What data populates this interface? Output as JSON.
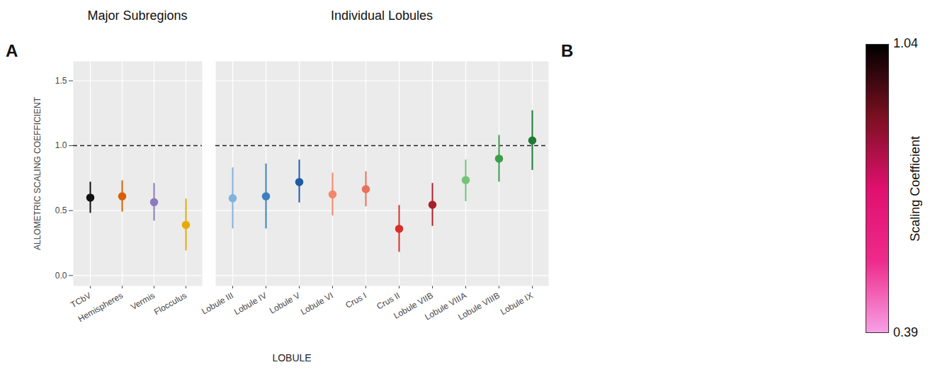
{
  "chart_data": [
    {
      "type": "scatter",
      "panel": "A",
      "y_label": "ALLOMETRIC SCALING COEFFICIENT",
      "x_label": "LOBULE",
      "ylim": [
        -0.08,
        1.65
      ],
      "yticks": [
        {
          "value": 0,
          "label": "0.0"
        },
        0.5,
        {
          "value": 1,
          "label": "1.0"
        },
        1.5
      ],
      "grid": true,
      "marker": "circle",
      "reference_line": 1,
      "panels": [
        {
          "title": "Major Subregions",
          "categories": [
            "TCbV",
            "Hemispheres",
            "Vermis",
            "Flocculus"
          ],
          "values": [
            0.6,
            0.61,
            0.565,
            0.39
          ],
          "lower": [
            0.48,
            0.49,
            0.42,
            0.19
          ],
          "upper": [
            0.72,
            0.73,
            0.71,
            0.59
          ],
          "colors": [
            "#111111",
            "#d95f02",
            "#8c7ac0",
            "#e6ab02"
          ]
        },
        {
          "title": "Individual Lobules",
          "categories": [
            "Lobule III",
            "Lobule IV",
            "Lobule V",
            "Lobule VI",
            "Crus I",
            "Crus II",
            "Lobule VIIB",
            "Lobule VIIIA",
            "Lobule VIIIB",
            "Lobule IX"
          ],
          "values": [
            0.595,
            0.61,
            0.72,
            0.625,
            0.665,
            0.36,
            0.545,
            0.735,
            0.9,
            1.04
          ],
          "lower": [
            0.36,
            0.36,
            0.56,
            0.46,
            0.53,
            0.18,
            0.38,
            0.57,
            0.72,
            0.81
          ],
          "upper": [
            0.83,
            0.86,
            0.89,
            0.79,
            0.8,
            0.54,
            0.71,
            0.89,
            1.08,
            1.27
          ],
          "colors": [
            "#7fb2dc",
            "#3d7fc0",
            "#1f5aa6",
            "#f4876a",
            "#e9705a",
            "#d7302a",
            "#a8202a",
            "#74c476",
            "#3d9e4a",
            "#1f7a33"
          ]
        }
      ]
    },
    {
      "type": "colorbar",
      "panel": "B",
      "label": "Scaling Coefficient",
      "range": [
        0.39,
        1.04
      ],
      "ticks": [
        0.39,
        1.04
      ],
      "colors": [
        "#f7a0e6",
        "#ee2a8a",
        "#e0106e",
        "#7a1020",
        "#000000"
      ]
    }
  ]
}
